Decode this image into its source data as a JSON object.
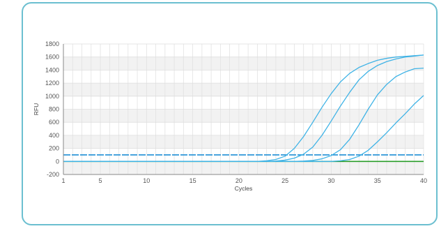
{
  "chart_data": {
    "type": "line",
    "title": "",
    "xlabel": "Cycles",
    "ylabel": "RFU",
    "xlim": [
      1,
      40
    ],
    "ylim": [
      -200,
      1800
    ],
    "xticks": [
      1,
      5,
      10,
      15,
      20,
      25,
      30,
      35,
      40
    ],
    "yticks": [
      -200,
      0,
      200,
      400,
      600,
      800,
      1000,
      1200,
      1400,
      1600,
      1800
    ],
    "grid": true,
    "legend": "none",
    "x": [
      1,
      2,
      3,
      4,
      5,
      6,
      7,
      8,
      9,
      10,
      11,
      12,
      13,
      14,
      15,
      16,
      17,
      18,
      19,
      20,
      21,
      22,
      23,
      24,
      25,
      26,
      27,
      28,
      29,
      30,
      31,
      32,
      33,
      34,
      35,
      36,
      37,
      38,
      39,
      40
    ],
    "series": [
      {
        "color": "#3fb3e6",
        "values": [
          0,
          0,
          0,
          0,
          0,
          0,
          0,
          0,
          0,
          0,
          0,
          0,
          0,
          0,
          0,
          0,
          0,
          0,
          0,
          0,
          0,
          0,
          10,
          30,
          80,
          200,
          380,
          600,
          830,
          1040,
          1220,
          1350,
          1440,
          1500,
          1550,
          1580,
          1600,
          1610,
          1620,
          1630
        ]
      },
      {
        "color": "#3fb3e6",
        "values": [
          0,
          0,
          0,
          0,
          0,
          0,
          0,
          0,
          0,
          0,
          0,
          0,
          0,
          0,
          0,
          0,
          0,
          0,
          0,
          0,
          0,
          0,
          0,
          5,
          20,
          50,
          110,
          220,
          400,
          620,
          850,
          1060,
          1250,
          1380,
          1470,
          1530,
          1570,
          1600,
          1615,
          1630
        ]
      },
      {
        "color": "#3fb3e6",
        "values": [
          0,
          0,
          0,
          0,
          0,
          0,
          0,
          0,
          0,
          0,
          0,
          0,
          0,
          0,
          0,
          0,
          0,
          0,
          0,
          0,
          0,
          0,
          0,
          0,
          0,
          0,
          5,
          15,
          40,
          90,
          180,
          340,
          560,
          800,
          1020,
          1180,
          1300,
          1370,
          1420,
          1430
        ]
      },
      {
        "color": "#3fb3e6",
        "values": [
          0,
          0,
          0,
          0,
          0,
          0,
          0,
          0,
          0,
          0,
          0,
          0,
          0,
          0,
          0,
          0,
          0,
          0,
          0,
          0,
          0,
          0,
          0,
          0,
          0,
          0,
          0,
          0,
          0,
          0,
          10,
          30,
          80,
          170,
          300,
          440,
          590,
          730,
          880,
          1010
        ]
      }
    ],
    "threshold": {
      "value": 100,
      "color": "#1f8fd6",
      "style": "dashed"
    },
    "baseline": {
      "value": 0,
      "color": "#2a9d2a"
    },
    "band_colors": [
      "#f2f2f2",
      "#ffffff"
    ]
  }
}
